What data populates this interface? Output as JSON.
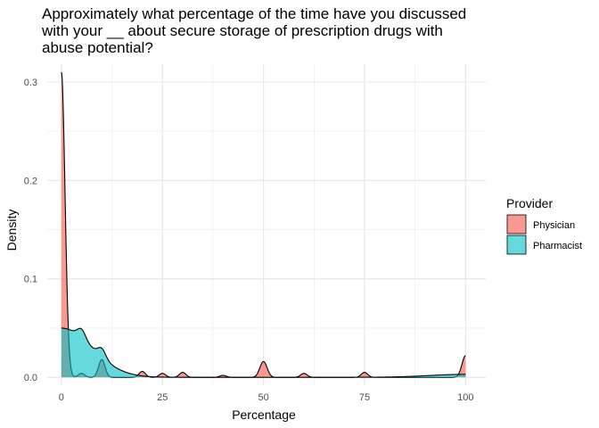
{
  "chart_data": {
    "type": "area",
    "subtype": "density",
    "title_lines": [
      "Approximately what percentage of the time have you discussed",
      "with your __ about secure storage of prescription drugs with",
      "abuse potential?"
    ],
    "xlabel": "Percentage",
    "ylabel": "Density",
    "xlim": [
      -3.5,
      105
    ],
    "ylim": [
      -0.008,
      0.318
    ],
    "x_ticks": [
      0,
      25,
      50,
      75,
      100
    ],
    "x_tick_labels": [
      "0",
      "25",
      "50",
      "75",
      "100"
    ],
    "y_ticks": [
      0.0,
      0.1,
      0.2,
      0.3
    ],
    "y_tick_labels": [
      "0.0",
      "0.1",
      "0.2",
      "0.3"
    ],
    "grid": true,
    "legend": {
      "title": "Provider",
      "position": "right"
    },
    "series": [
      {
        "name": "Physician",
        "color": "#F8766D",
        "fill_opacity": 0.75,
        "peaks": [
          {
            "x": 0,
            "y": 0.31,
            "w": 0.9
          },
          {
            "x": 5,
            "y": 0.004,
            "w": 0.8
          },
          {
            "x": 10,
            "y": 0.018,
            "w": 0.8
          },
          {
            "x": 20,
            "y": 0.006,
            "w": 0.8
          },
          {
            "x": 25,
            "y": 0.004,
            "w": 0.8
          },
          {
            "x": 30,
            "y": 0.005,
            "w": 0.8
          },
          {
            "x": 40,
            "y": 0.002,
            "w": 0.8
          },
          {
            "x": 50,
            "y": 0.016,
            "w": 0.9
          },
          {
            "x": 60,
            "y": 0.004,
            "w": 0.8
          },
          {
            "x": 75,
            "y": 0.005,
            "w": 0.8
          },
          {
            "x": 100,
            "y": 0.022,
            "w": 0.9
          }
        ]
      },
      {
        "name": "Pharmacist",
        "color": "#00BFC4",
        "fill_opacity": 0.6,
        "peaks": [
          {
            "x": 0,
            "y": 0.05,
            "w": 7.5
          },
          {
            "x": 5,
            "y": 0.009,
            "w": 1.0
          },
          {
            "x": 10,
            "y": 0.009,
            "w": 1.0
          },
          {
            "x": 100,
            "y": 0.003,
            "w": 9
          }
        ]
      }
    ]
  }
}
